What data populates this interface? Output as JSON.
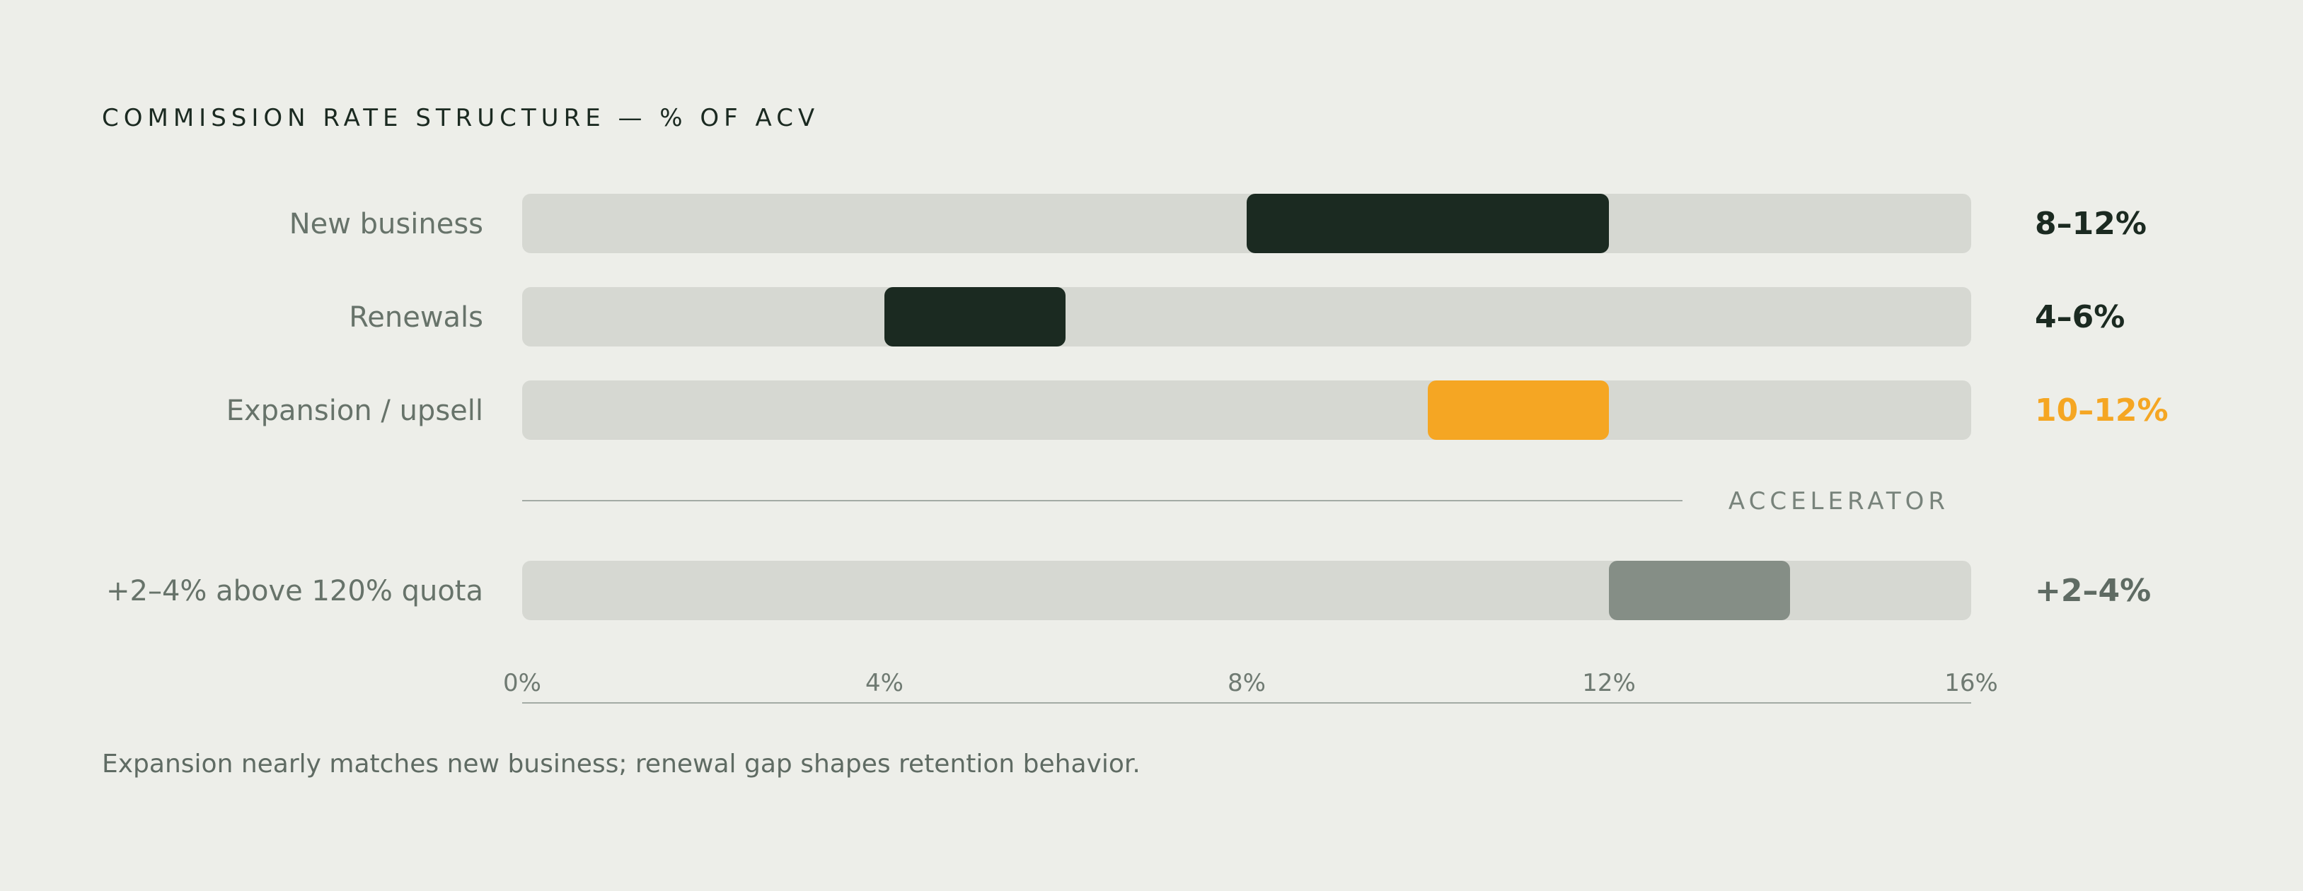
{
  "chart_data": {
    "type": "bar",
    "subtype": "range",
    "title": "COMMISSION RATE STRUCTURE — % OF ACV",
    "x_axis": {
      "min": 0,
      "max": 16,
      "ticks": [
        0,
        4,
        8,
        12,
        16
      ],
      "tick_labels": [
        "0%",
        "4%",
        "8%",
        "12%",
        "16%"
      ],
      "unit": "%"
    },
    "rows": [
      {
        "label": "New business",
        "range": [
          8,
          12
        ],
        "value_label": "8–12%",
        "color": "#1b2a21",
        "label_color": "#1b2a21"
      },
      {
        "label": "Renewals",
        "range": [
          4,
          6
        ],
        "value_label": "4–6%",
        "color": "#1b2a21",
        "label_color": "#1b2a21"
      },
      {
        "label": "Expansion / upsell",
        "range": [
          10,
          12
        ],
        "value_label": "10–12%",
        "color": "#f5a623",
        "label_color": "#f5a623"
      }
    ],
    "section": {
      "label": "ACCELERATOR"
    },
    "accelerator_rows": [
      {
        "label": "+2–4% above 120% quota",
        "range": [
          12,
          14
        ],
        "value_label": "+2–4%",
        "color": "#858e86",
        "label_color": "#5f6b63"
      }
    ],
    "track_color": "#d6d8d2",
    "grid": false,
    "legend": "none"
  },
  "caption": "Expansion nearly matches new business; renewal gap shapes retention behavior."
}
